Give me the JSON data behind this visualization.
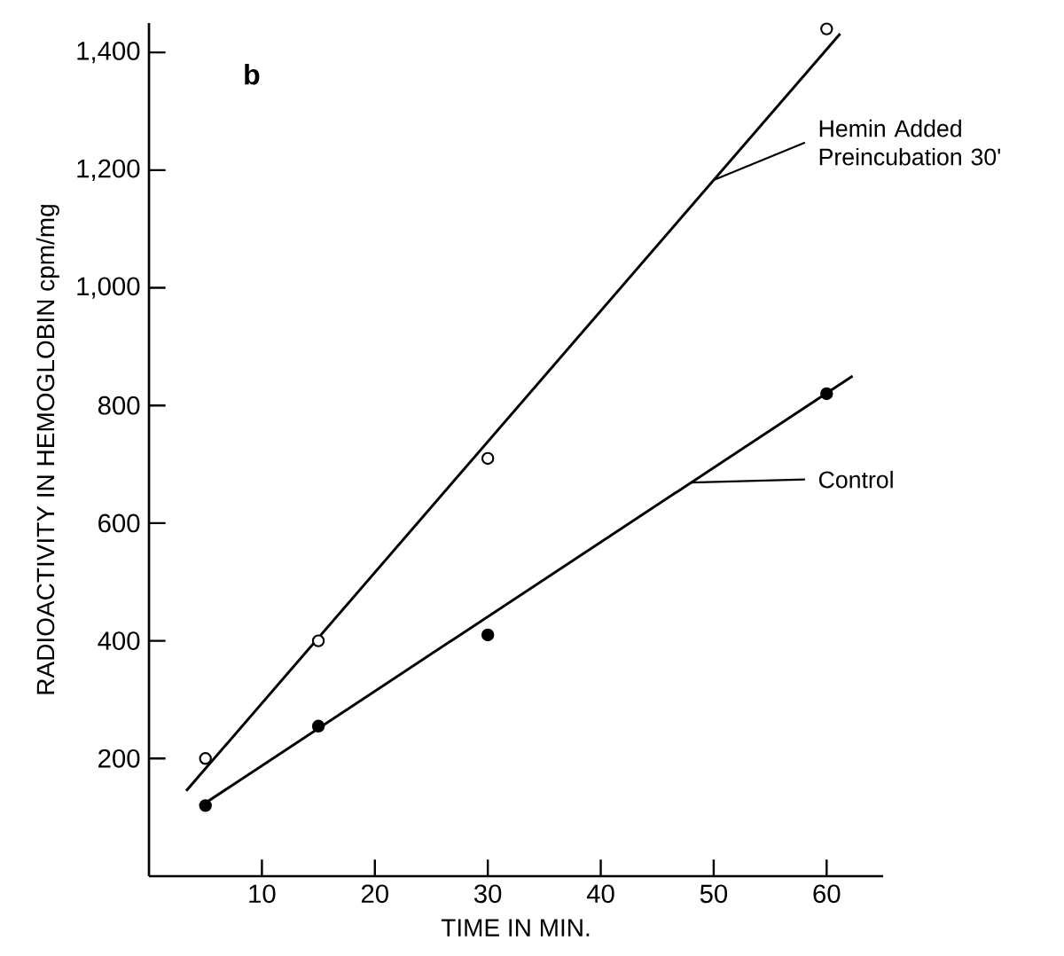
{
  "chart_data": {
    "type": "scatter",
    "xlabel": "TIME IN MIN.",
    "ylabel": "RADIOACTIVITY IN HEMOGLOBIN cpm/mg",
    "annotations": [
      "b"
    ],
    "xlim": [
      0,
      65
    ],
    "ylim": [
      0,
      1450
    ],
    "xticks": [
      10,
      20,
      30,
      40,
      50,
      60
    ],
    "yticks": [
      {
        "value": 200,
        "label": "200"
      },
      {
        "value": 400,
        "label": "400"
      },
      {
        "value": 600,
        "label": "600"
      },
      {
        "value": 800,
        "label": "800"
      },
      {
        "value": 1000,
        "label": "1,000"
      },
      {
        "value": 1200,
        "label": "1,200"
      },
      {
        "value": 1400,
        "label": "1,400"
      }
    ],
    "grid": false,
    "legend": "right",
    "series": [
      {
        "name": "Hemin Added Preincubation 30'",
        "color": "#000000",
        "marker": "circle",
        "x": [
          5,
          15,
          30,
          60
        ],
        "values": [
          200,
          400,
          710,
          1440
        ]
      },
      {
        "name": "Control",
        "color": "#000000",
        "marker": "circle",
        "x": [
          5,
          15,
          30,
          60
        ],
        "values": [
          120,
          255,
          410,
          820
        ]
      },
      {
        "type": "line",
        "marker": "none",
        "color": "#000000",
        "x": [
          3.3,
          61.2
        ],
        "values": [
          145,
          1432
        ]
      },
      {
        "type": "line",
        "marker": "none",
        "color": "#000000",
        "x": [
          5.2,
          62.3
        ],
        "values": [
          127,
          850
        ]
      }
    ]
  }
}
